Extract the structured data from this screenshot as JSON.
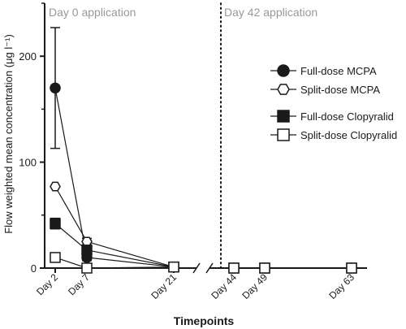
{
  "chart_data": {
    "type": "line",
    "xlabel": "Timepoints",
    "ylabel": "Flow weighted mean concentration (μg l⁻¹)",
    "ylim": [
      0,
      250
    ],
    "yticks": [
      0,
      100,
      200
    ],
    "x_axis_break_between": [
      "Day 21",
      "Day 44"
    ],
    "categories": [
      "Day 2",
      "Day 7",
      "Day 21",
      "Day 44",
      "Day 49",
      "Day 63"
    ],
    "category_days": [
      2,
      7,
      21,
      44,
      49,
      63
    ],
    "annotations": [
      {
        "text": "Day 0 application"
      },
      {
        "text": "Day 42 application",
        "x_day": 42,
        "line_style": "dotted"
      }
    ],
    "legend_position": "right",
    "series": [
      {
        "name": "Full-dose MCPA",
        "marker": "circle",
        "fill": "#1a1a1a",
        "x": [
          2,
          7,
          21,
          44,
          49,
          63
        ],
        "y": [
          170,
          10,
          1,
          0,
          0,
          0
        ],
        "error": [
          57,
          3,
          0,
          0,
          0,
          0
        ]
      },
      {
        "name": "Split-dose MCPA",
        "marker": "hexagon",
        "fill": "#ffffff",
        "x": [
          2,
          7,
          21,
          44,
          49,
          63
        ],
        "y": [
          77,
          25,
          1,
          0,
          0,
          0
        ],
        "error": [
          0,
          3,
          0,
          0,
          0,
          0
        ]
      },
      {
        "name": "Full-dose Clopyralid",
        "marker": "square",
        "fill": "#1a1a1a",
        "x": [
          2,
          7,
          21,
          44,
          49,
          63
        ],
        "y": [
          42,
          17,
          1,
          0,
          0,
          0
        ],
        "error": [
          5,
          4,
          0,
          0,
          0,
          0
        ]
      },
      {
        "name": "Split-dose Clopyralid",
        "marker": "square",
        "fill": "#ffffff",
        "x": [
          2,
          7,
          21,
          44,
          49,
          63
        ],
        "y": [
          10,
          0,
          1,
          0,
          0,
          0
        ],
        "error": [
          0,
          0,
          0,
          0,
          0,
          0
        ]
      }
    ],
    "colors": {
      "ink": "#1a1a1a",
      "annotation": "#999999"
    }
  }
}
